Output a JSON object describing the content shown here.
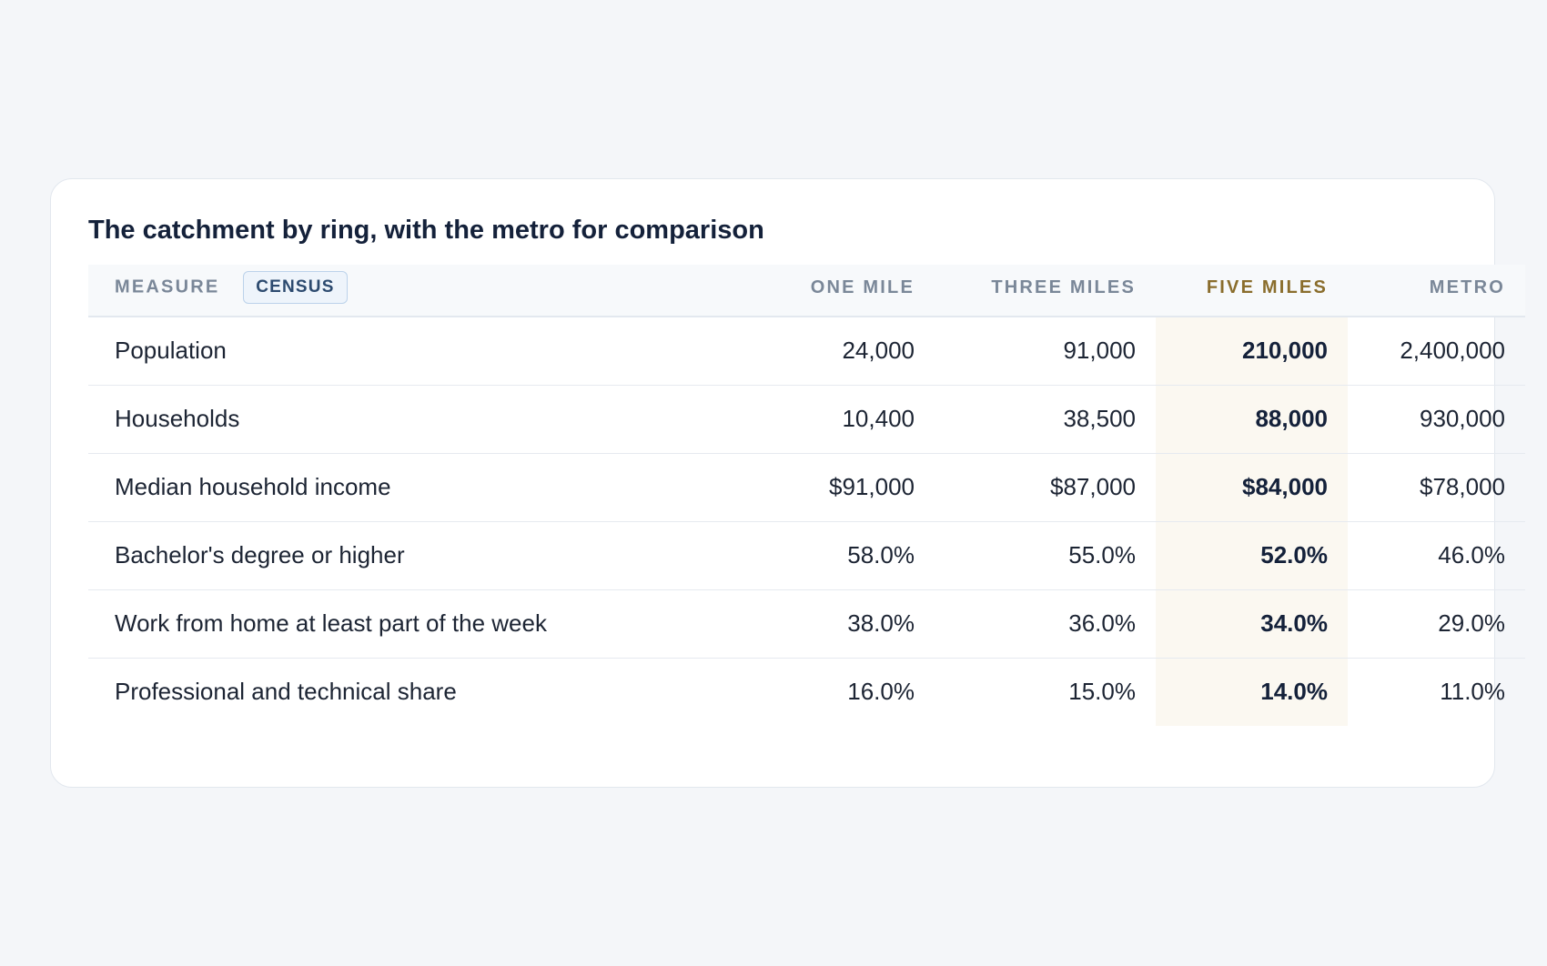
{
  "title": "The catchment by ring, with the metro for comparison",
  "columns": {
    "measure": "MEASURE",
    "badge": "CENSUS",
    "one_mile": "ONE MILE",
    "three_miles": "THREE MILES",
    "five_miles": "FIVE MILES",
    "metro": "METRO"
  },
  "rows": [
    {
      "measure": "Population",
      "one_mile": "24,000",
      "three_miles": "91,000",
      "five_miles": "210,000",
      "metro": "2,400,000"
    },
    {
      "measure": "Households",
      "one_mile": "10,400",
      "three_miles": "38,500",
      "five_miles": "88,000",
      "metro": "930,000"
    },
    {
      "measure": "Median household income",
      "one_mile": "$91,000",
      "three_miles": "$87,000",
      "five_miles": "$84,000",
      "metro": "$78,000"
    },
    {
      "measure": "Bachelor's degree or higher",
      "one_mile": "58.0%",
      "three_miles": "55.0%",
      "five_miles": "52.0%",
      "metro": "46.0%"
    },
    {
      "measure": "Work from home at least part of the week",
      "one_mile": "38.0%",
      "three_miles": "36.0%",
      "five_miles": "34.0%",
      "metro": "29.0%"
    },
    {
      "measure": "Professional and technical share",
      "one_mile": "16.0%",
      "three_miles": "15.0%",
      "five_miles": "14.0%",
      "metro": "11.0%"
    }
  ],
  "colors": {
    "highlight_column_bg": "#fbf8f1",
    "highlight_header": "#8a6d2c",
    "badge_bg": "#eef4fb",
    "badge_text": "#2c4a6f"
  }
}
